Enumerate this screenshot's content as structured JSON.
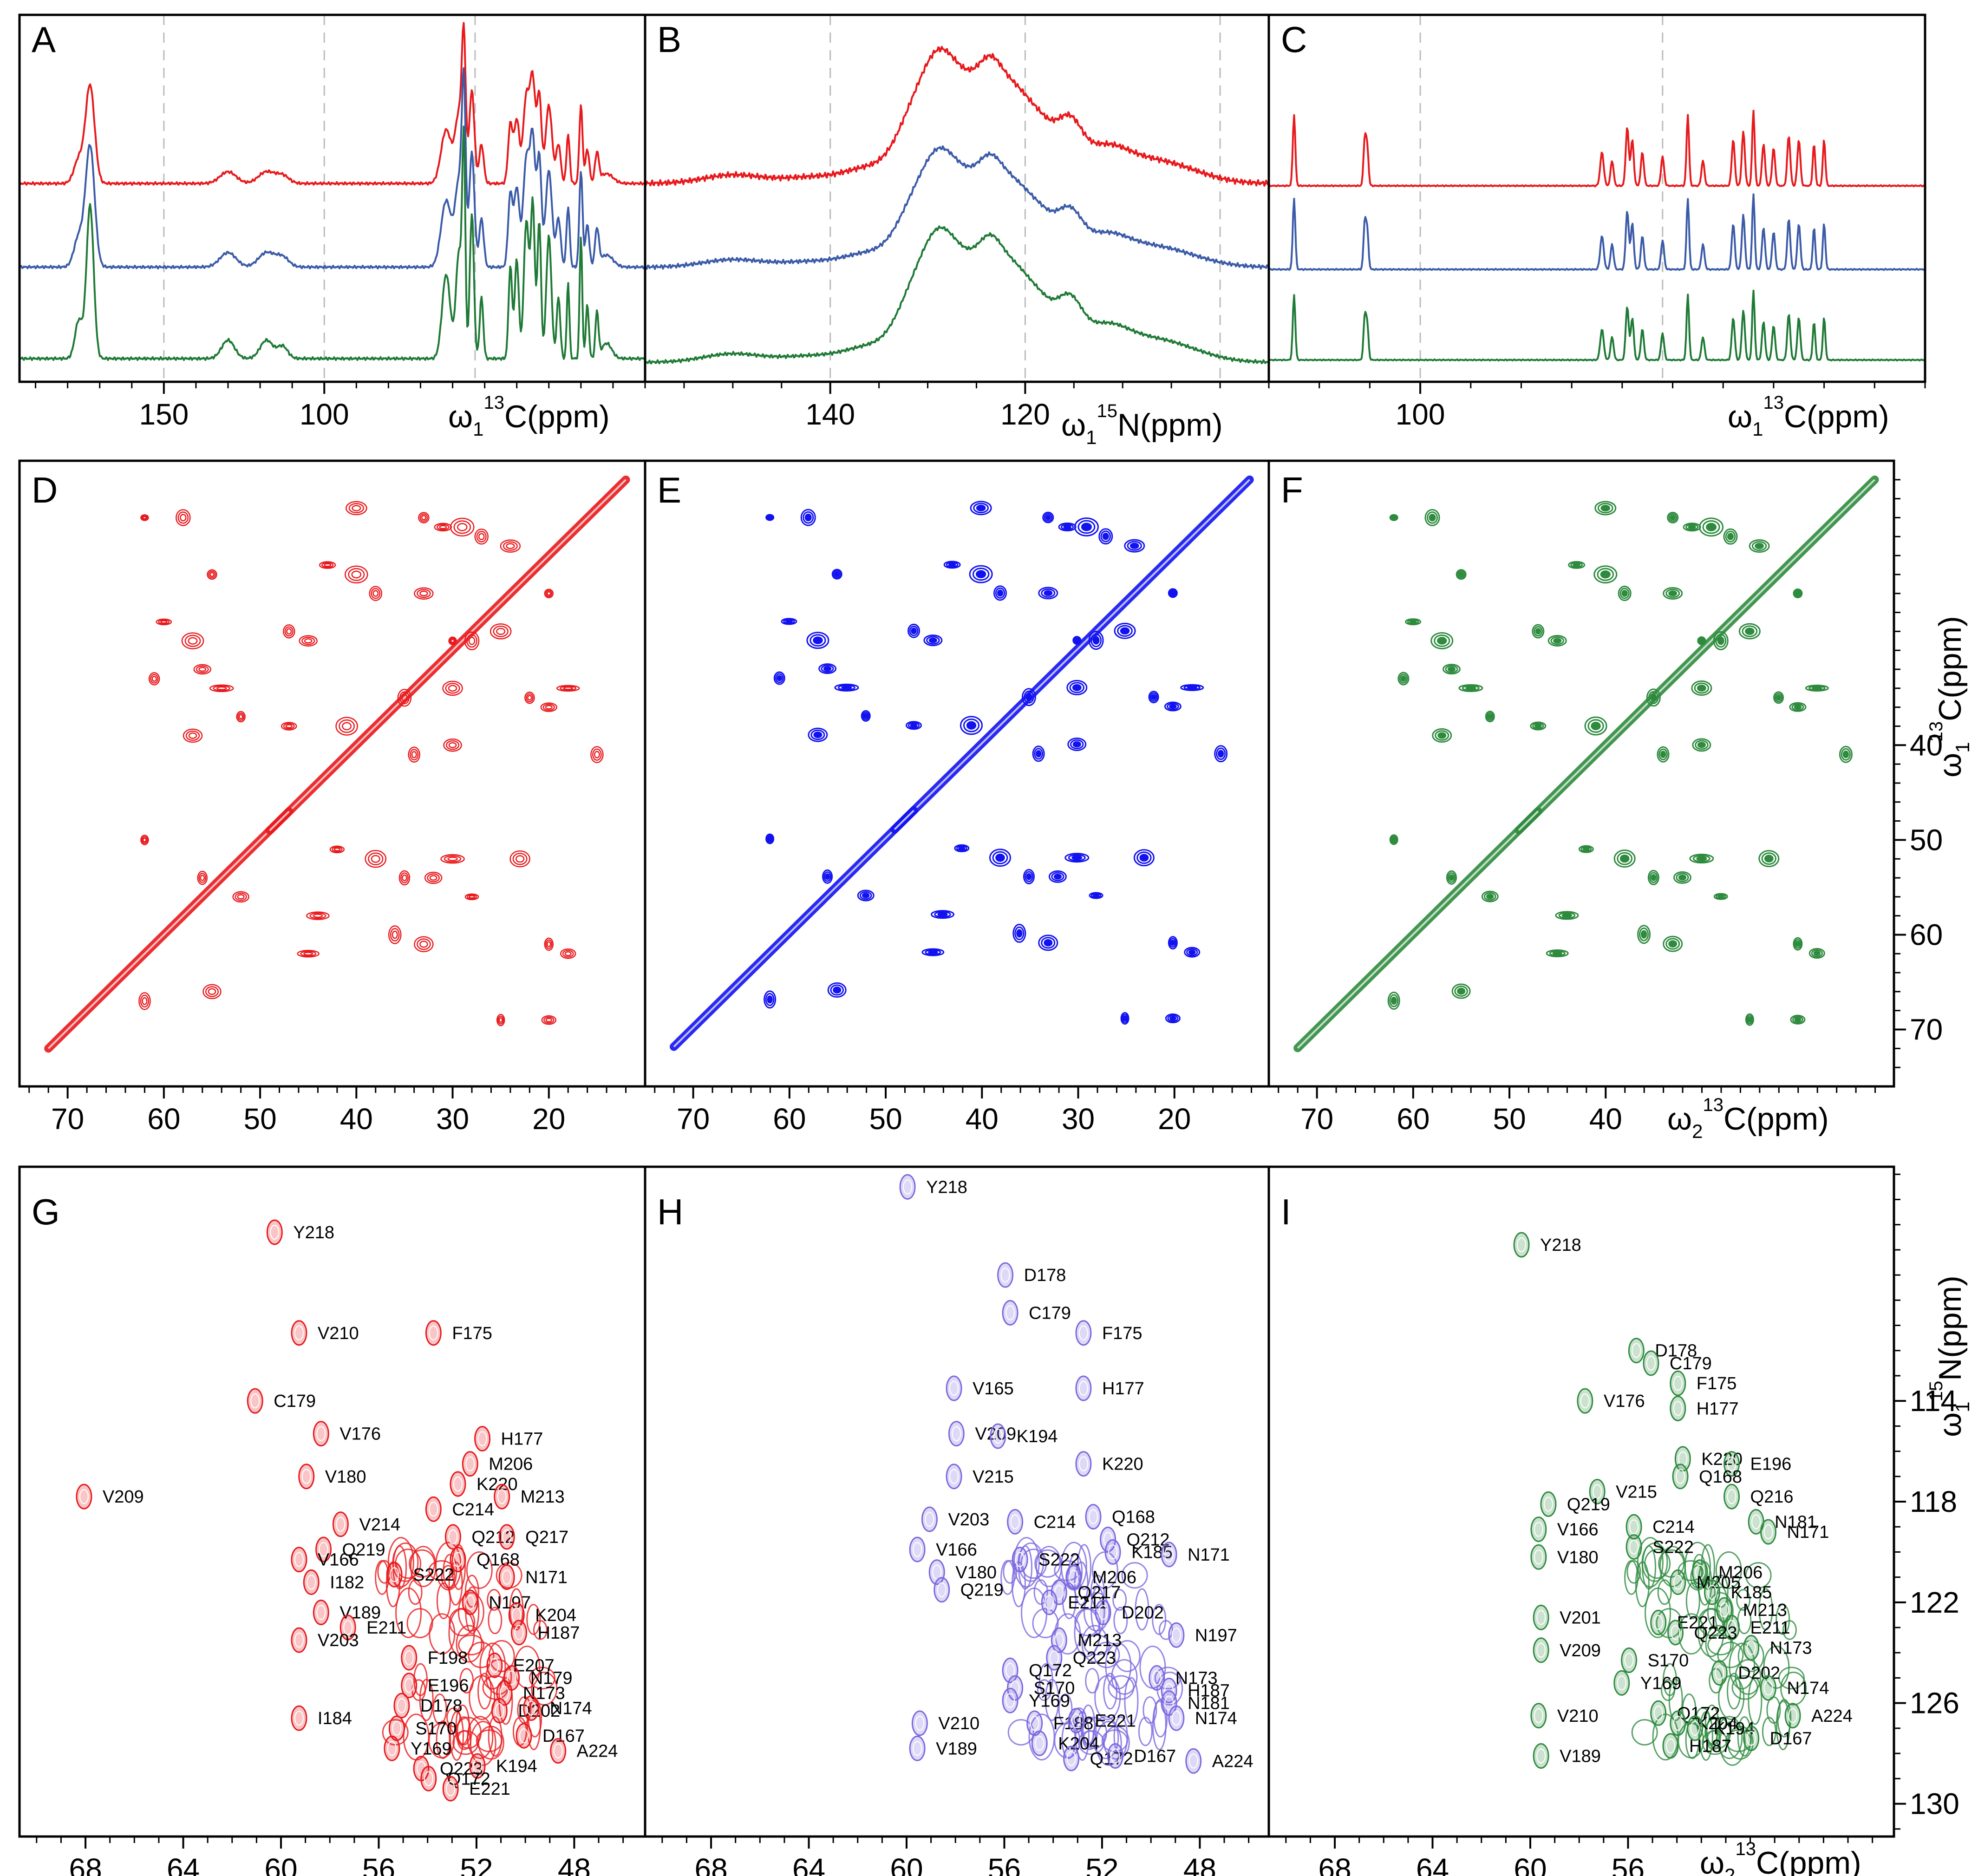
{
  "colors": {
    "red": "#e8191c",
    "blue": "#3b5ba8",
    "green": "#1f7a36",
    "blue2d": "#1212f0",
    "purple": "#7b68e0",
    "green2d": "#2e8b3e"
  },
  "panels": [
    {
      "letter": "A"
    },
    {
      "letter": "B"
    },
    {
      "letter": "C"
    },
    {
      "letter": "D"
    },
    {
      "letter": "E"
    },
    {
      "letter": "F"
    },
    {
      "letter": "G"
    },
    {
      "letter": "H"
    },
    {
      "letter": "I"
    }
  ],
  "axis_labels": {
    "A": {
      "omega": "ω",
      "sub": "1",
      "sup": "13",
      "rest": "C(ppm)"
    },
    "B": {
      "omega": "ω",
      "sub": "1",
      "sup": "15",
      "rest": "N(ppm)"
    },
    "C": {
      "omega": "ω",
      "sub": "1",
      "sup": "13",
      "rest": "C(ppm)"
    },
    "F": {
      "omega": "ω",
      "sub": "2",
      "sup": "13",
      "rest": "C(ppm)"
    },
    "right_mid": {
      "omega": "ω",
      "sub": "1",
      "sup": "13",
      "rest": "C(ppm)"
    },
    "I": {
      "omega": "ω",
      "sub": "2",
      "sup": "13",
      "rest": "C(ppm)"
    },
    "right_bottom": {
      "omega": "ω",
      "sub": "1",
      "sup": "15",
      "rest": "N(ppm)"
    }
  },
  "chart_data": [
    {
      "panel": "A",
      "type": "line",
      "xlabel": "ω1 13C(ppm)",
      "xlim": [
        195,
        0
      ],
      "ticks": [
        "150",
        "100"
      ],
      "tick_values": [
        150,
        100
      ],
      "dashed_lines": [
        150,
        100,
        53
      ],
      "series": [
        {
          "name": "red"
        },
        {
          "name": "blue"
        },
        {
          "name": "green"
        }
      ]
    },
    {
      "panel": "B",
      "type": "line",
      "xlabel": "ω1 15N(ppm)",
      "xlim": [
        159,
        95
      ],
      "ticks": [
        "140",
        "120"
      ],
      "tick_values": [
        140,
        120
      ],
      "dashed_lines": [
        140,
        120,
        100
      ],
      "series": [
        {
          "name": "red"
        },
        {
          "name": "blue"
        },
        {
          "name": "green"
        }
      ]
    },
    {
      "panel": "C",
      "type": "line",
      "xlabel": "ω1 13C(ppm)",
      "xlim": [
        130,
        0
      ],
      "ticks": [
        "100"
      ],
      "tick_values": [
        100
      ],
      "dashed_lines": [
        100,
        52
      ],
      "series": [
        {
          "name": "red"
        },
        {
          "name": "blue"
        },
        {
          "name": "green"
        }
      ]
    },
    {
      "panel": "D",
      "type": "scatter",
      "xlim": [
        75,
        10
      ],
      "ylim": [
        10,
        76
      ],
      "xticks": [
        "70",
        "60",
        "50",
        "40",
        "30",
        "20"
      ],
      "xtick_values": [
        70,
        60,
        50,
        40,
        30,
        20
      ]
    },
    {
      "panel": "E",
      "type": "scatter",
      "xlim": [
        75,
        10
      ],
      "ylim": [
        10,
        76
      ],
      "xticks": [
        "70",
        "60",
        "50",
        "40",
        "30",
        "20"
      ],
      "xtick_values": [
        70,
        60,
        50,
        40,
        30,
        20
      ]
    },
    {
      "panel": "F",
      "type": "scatter",
      "xlim": [
        75,
        10
      ],
      "ylim": [
        10,
        76
      ],
      "xticks": [
        "70",
        "60",
        "50",
        "40"
      ],
      "xtick_values": [
        70,
        60,
        50,
        40
      ],
      "yticks": [
        "40",
        "50",
        "60",
        "70"
      ],
      "ytick_values": [
        40,
        50,
        60,
        70
      ]
    },
    {
      "panel": "G",
      "type": "scatter",
      "xlim": [
        70.7,
        45.1
      ],
      "ylim": [
        104.7,
        131.3
      ],
      "xticks": [
        "68",
        "64",
        "60",
        "56",
        "52",
        "48"
      ],
      "xtick_values": [
        68,
        64,
        60,
        56,
        52,
        48
      ],
      "labels": [
        "Y218",
        "V210",
        "F175",
        "C179",
        "H177",
        "M206",
        "K220",
        "M213",
        "C214",
        "V176",
        "V209",
        "V180",
        "V214",
        "Q212",
        "Q217",
        "Q219",
        "Q168",
        "N171",
        "S222",
        "V166",
        "N197",
        "K204",
        "I182",
        "H187",
        "V189",
        "E211",
        "E207",
        "N179",
        "V203",
        "N173",
        "F198",
        "D202",
        "E196",
        "D178",
        "N174",
        "I184",
        "S170",
        "D167",
        "Y169",
        "Q223",
        "K194",
        "A224",
        "Q172",
        "E221"
      ]
    },
    {
      "panel": "H",
      "type": "scatter",
      "xlim": [
        70.7,
        45.1
      ],
      "ylim": [
        104.7,
        131.3
      ],
      "xticks": [
        "68",
        "64",
        "60",
        "56",
        "52",
        "48"
      ],
      "xtick_values": [
        68,
        64,
        60,
        56,
        52,
        48
      ],
      "labels": [
        "Y218",
        "D178",
        "C179",
        "F175",
        "V165",
        "H177",
        "V209",
        "K220",
        "K194",
        "V215",
        "C214",
        "Q168",
        "V203",
        "Q212",
        "V166",
        "K185",
        "S222",
        "N171",
        "V180",
        "M206",
        "Q217",
        "Q219",
        "E211",
        "D202",
        "N197",
        "M213",
        "Q223",
        "Q172",
        "N173",
        "H187",
        "S170",
        "N181",
        "Y169",
        "N174",
        "F188",
        "E221",
        "K204",
        "A224",
        "V210",
        "Q172",
        "D167",
        "V189"
      ]
    },
    {
      "panel": "I",
      "type": "scatter",
      "xlim": [
        70.7,
        45.1
      ],
      "ylim": [
        104.7,
        131.3
      ],
      "xticks": [
        "68",
        "64",
        "60",
        "56"
      ],
      "xtick_values": [
        68,
        64,
        60,
        56
      ],
      "yticks": [
        "114",
        "118",
        "122",
        "126",
        "130"
      ],
      "ytick_values": [
        114,
        118,
        122,
        126,
        130
      ],
      "labels": [
        "Y218",
        "D178",
        "C179",
        "F175",
        "V176",
        "H177",
        "K220",
        "E196",
        "V215",
        "Q219",
        "Q168",
        "Q216",
        "N181",
        "V166",
        "C214",
        "N171",
        "S222",
        "V180",
        "M206",
        "M205",
        "K185",
        "M213",
        "E221",
        "E211",
        "V201",
        "Q223",
        "N173",
        "V209",
        "S170",
        "D202",
        "Y169",
        "N174",
        "Q172",
        "A224",
        "K204",
        "K194",
        "D167",
        "H187",
        "V210",
        "V189"
      ]
    }
  ]
}
